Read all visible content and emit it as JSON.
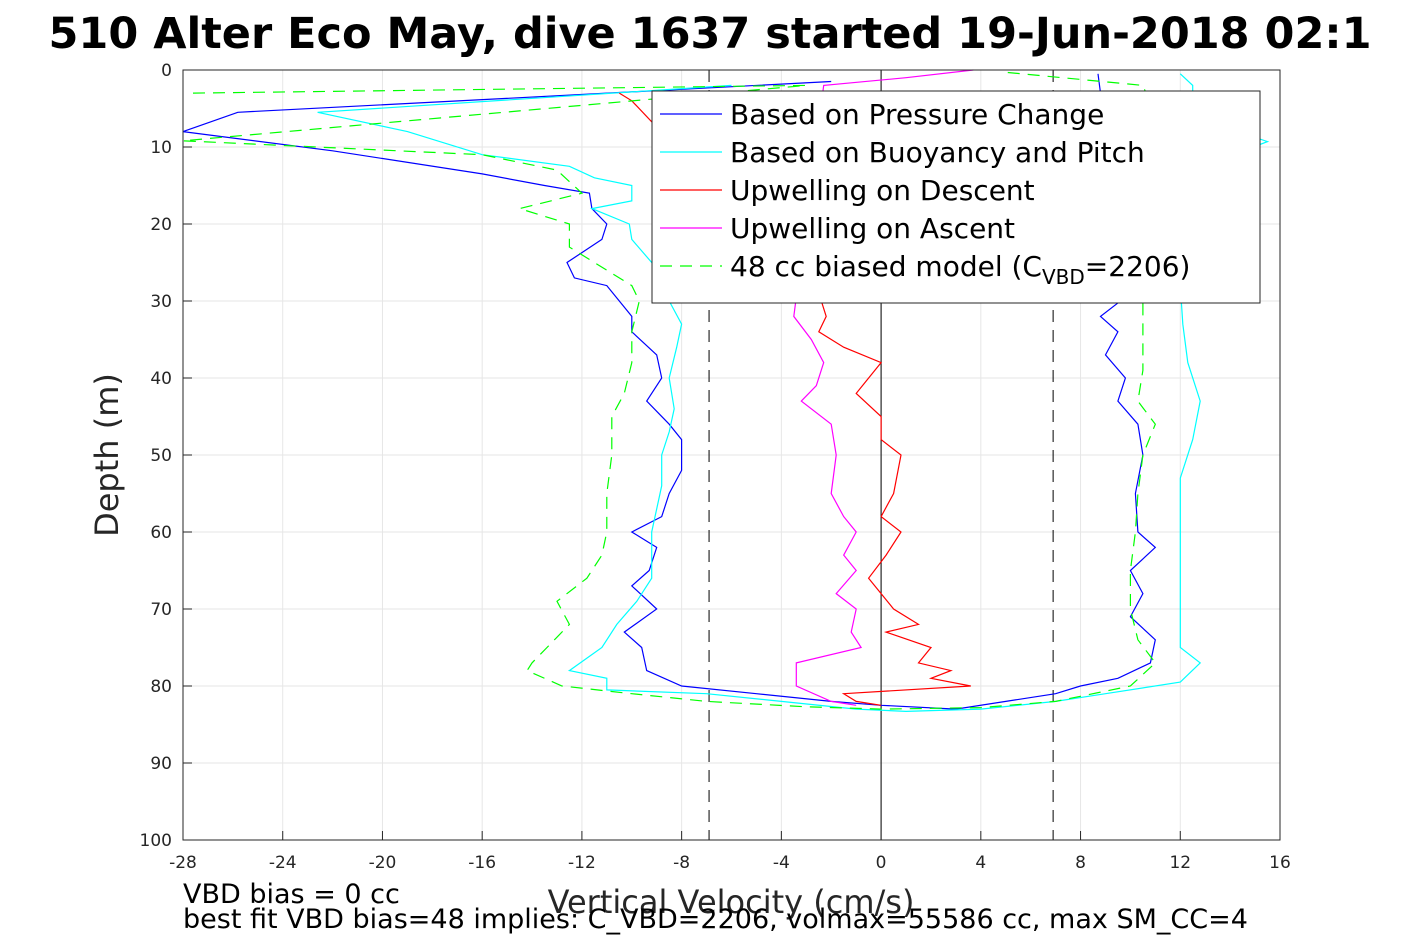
{
  "chart_data": {
    "type": "line",
    "title": "510 Alter Eco May, dive 1637 started 19-Jun-2018 02:1",
    "xlabel": "Vertical Velocity (cm/s)",
    "ylabel": "Depth (m)",
    "xlim": [
      -28,
      16
    ],
    "ylim": [
      0,
      100
    ],
    "y_reversed": true,
    "grid": true,
    "legend_position": "top-right",
    "xticks": [
      -28,
      -24,
      -20,
      -16,
      -12,
      -8,
      -4,
      0,
      4,
      8,
      12,
      16
    ],
    "yticks": [
      0,
      10,
      20,
      30,
      40,
      50,
      60,
      70,
      80,
      90,
      100
    ],
    "reference_lines": {
      "zero": 0,
      "dashed": [
        -6.9,
        6.9
      ]
    },
    "series": [
      {
        "name": "Based on Pressure Change",
        "color": "#0000ff",
        "style": "solid",
        "points": [
          [
            -2,
            1.5
          ],
          [
            -8,
            2.5
          ],
          [
            -25.8,
            5.5
          ],
          [
            -28,
            8
          ],
          [
            -22,
            10.5
          ],
          [
            -16,
            13.5
          ],
          [
            -13.5,
            15
          ],
          [
            -11.7,
            16
          ],
          [
            -11.6,
            18
          ],
          [
            -11,
            20
          ],
          [
            -11.2,
            22
          ],
          [
            -12.6,
            25
          ],
          [
            -12.3,
            27
          ],
          [
            -11,
            28
          ],
          [
            -10.5,
            30
          ],
          [
            -10,
            32
          ],
          [
            -10,
            34
          ],
          [
            -9,
            37
          ],
          [
            -8.8,
            40
          ],
          [
            -9.4,
            43
          ],
          [
            -8.5,
            46
          ],
          [
            -8,
            48
          ],
          [
            -8,
            52
          ],
          [
            -8.5,
            55
          ],
          [
            -8.8,
            58
          ],
          [
            -10,
            60
          ],
          [
            -9,
            62
          ],
          [
            -9.3,
            65
          ],
          [
            -10,
            67
          ],
          [
            -9,
            70
          ],
          [
            -10.3,
            73
          ],
          [
            -9.6,
            75
          ],
          [
            -9.4,
            78
          ],
          [
            -8,
            80
          ],
          [
            -5,
            81
          ],
          [
            -2,
            82
          ],
          [
            0,
            82.5
          ],
          [
            3,
            83
          ],
          [
            5,
            82
          ],
          [
            7,
            81
          ],
          [
            8,
            80
          ],
          [
            9.5,
            79
          ],
          [
            10.8,
            77
          ],
          [
            11,
            74
          ],
          [
            10,
            71
          ],
          [
            10.5,
            68
          ],
          [
            10,
            65
          ],
          [
            11,
            62
          ],
          [
            10.3,
            60
          ],
          [
            10.2,
            55
          ],
          [
            10.5,
            50
          ],
          [
            10.3,
            46
          ],
          [
            9.5,
            43
          ],
          [
            9.8,
            40
          ],
          [
            9,
            37
          ],
          [
            9.5,
            34
          ],
          [
            8.8,
            32
          ],
          [
            10,
            29
          ],
          [
            9.5,
            27
          ],
          [
            9.3,
            24
          ],
          [
            9.3,
            20
          ],
          [
            9.5,
            16
          ],
          [
            9.5,
            12
          ],
          [
            8.8,
            9
          ],
          [
            8.8,
            6
          ],
          [
            8.8,
            3
          ],
          [
            8.7,
            0.5
          ]
        ]
      },
      {
        "name": "Based on Buoyancy and Pitch",
        "color": "#00ffff",
        "style": "solid",
        "points": [
          [
            -6,
            2
          ],
          [
            -22.6,
            5.5
          ],
          [
            -19,
            8
          ],
          [
            -16,
            11
          ],
          [
            -12.5,
            12.5
          ],
          [
            -11.5,
            14
          ],
          [
            -10,
            15
          ],
          [
            -10,
            17
          ],
          [
            -11.6,
            18
          ],
          [
            -10.1,
            20
          ],
          [
            -10,
            22
          ],
          [
            -9.2,
            25
          ],
          [
            -8.5,
            28
          ],
          [
            -8.5,
            30
          ],
          [
            -8,
            33
          ],
          [
            -8.2,
            36
          ],
          [
            -8.5,
            40
          ],
          [
            -8.3,
            44
          ],
          [
            -8.5,
            47
          ],
          [
            -8.8,
            50
          ],
          [
            -8.8,
            54
          ],
          [
            -9,
            57
          ],
          [
            -9.2,
            60
          ],
          [
            -9.2,
            63
          ],
          [
            -9.2,
            66
          ],
          [
            -9.8,
            69
          ],
          [
            -10.6,
            72
          ],
          [
            -11.2,
            75
          ],
          [
            -12.5,
            78
          ],
          [
            -11,
            79
          ],
          [
            -11,
            80.5
          ],
          [
            -7,
            81
          ],
          [
            -4,
            82
          ],
          [
            -1,
            83
          ],
          [
            1,
            83.3
          ],
          [
            4,
            83
          ],
          [
            7,
            82
          ],
          [
            9,
            81
          ],
          [
            12,
            79.5
          ],
          [
            12.8,
            77
          ],
          [
            12,
            75
          ],
          [
            12,
            70
          ],
          [
            12,
            65
          ],
          [
            12,
            61
          ],
          [
            12,
            57
          ],
          [
            12,
            53
          ],
          [
            12.5,
            48
          ],
          [
            12.8,
            43
          ],
          [
            12.3,
            38
          ],
          [
            12.1,
            33
          ],
          [
            12,
            28
          ],
          [
            12.2,
            22
          ],
          [
            12.2,
            17
          ],
          [
            12.5,
            13
          ],
          [
            15.5,
            9.3
          ],
          [
            12.5,
            6
          ],
          [
            12.5,
            2
          ],
          [
            12,
            0.5
          ]
        ]
      },
      {
        "name": "Upwelling on Descent",
        "color": "#ff0000",
        "style": "solid",
        "points": [
          [
            -10.5,
            3
          ],
          [
            -10,
            4
          ],
          [
            -2.4,
            30
          ],
          [
            -2.2,
            32
          ],
          [
            -2.5,
            34
          ],
          [
            -1.5,
            36
          ],
          [
            0,
            38
          ],
          [
            -1,
            42
          ],
          [
            0,
            45
          ],
          [
            0,
            48
          ],
          [
            0.8,
            50
          ],
          [
            0.5,
            55
          ],
          [
            0,
            58
          ],
          [
            0.8,
            60
          ],
          [
            0.2,
            63
          ],
          [
            -0.5,
            66
          ],
          [
            0,
            68
          ],
          [
            0.5,
            70
          ],
          [
            1.5,
            72
          ],
          [
            0.2,
            73
          ],
          [
            2,
            75
          ],
          [
            1.5,
            77
          ],
          [
            2.8,
            78
          ],
          [
            2,
            79
          ],
          [
            3.6,
            80
          ],
          [
            -1.5,
            81
          ],
          [
            -1,
            82
          ],
          [
            0,
            82.5
          ]
        ]
      },
      {
        "name": "Upwelling on Ascent",
        "color": "#ff00ff",
        "style": "solid",
        "points": [
          [
            3.7,
            0
          ],
          [
            1,
            1
          ],
          [
            -2.3,
            2
          ],
          [
            -3.5,
            32
          ],
          [
            -2.8,
            35
          ],
          [
            -2.3,
            38
          ],
          [
            -2.6,
            41
          ],
          [
            -3.2,
            43
          ],
          [
            -2,
            46
          ],
          [
            -1.8,
            50
          ],
          [
            -2,
            55
          ],
          [
            -1.5,
            58
          ],
          [
            -1,
            60
          ],
          [
            -1.5,
            63
          ],
          [
            -1,
            65
          ],
          [
            -1.8,
            68
          ],
          [
            -1,
            70
          ],
          [
            -1.2,
            73
          ],
          [
            -0.8,
            75
          ],
          [
            -3.4,
            77
          ],
          [
            -3.4,
            80
          ],
          [
            -2,
            82
          ],
          [
            -1,
            82.5
          ]
        ]
      },
      {
        "name": "48 cc biased model (C_VBD=2206)",
        "color": "#00ff00",
        "style": "dashed",
        "points": [
          [
            -27.6,
            3
          ],
          [
            -3,
            2
          ],
          [
            -28,
            9.2
          ],
          [
            -16,
            11
          ],
          [
            -13,
            13
          ],
          [
            -12,
            16
          ],
          [
            -14.5,
            18
          ],
          [
            -12.5,
            20
          ],
          [
            -12.5,
            23
          ],
          [
            -11,
            26
          ],
          [
            -10,
            28
          ],
          [
            -9.7,
            30
          ],
          [
            -10,
            34
          ],
          [
            -10,
            38
          ],
          [
            -10.3,
            42
          ],
          [
            -10.8,
            45
          ],
          [
            -10.8,
            50
          ],
          [
            -11,
            55
          ],
          [
            -11,
            60
          ],
          [
            -11.2,
            63
          ],
          [
            -11.8,
            66
          ],
          [
            -13,
            69
          ],
          [
            -12.5,
            72
          ],
          [
            -13.4,
            75
          ],
          [
            -14,
            77
          ],
          [
            -14.2,
            78
          ],
          [
            -12.8,
            80
          ],
          [
            -10,
            81
          ],
          [
            -7,
            82
          ],
          [
            -3,
            82.7
          ],
          [
            0,
            83
          ],
          [
            4,
            82.8
          ],
          [
            7,
            82
          ],
          [
            10,
            80
          ],
          [
            11,
            77
          ],
          [
            10.3,
            74
          ],
          [
            10,
            70
          ],
          [
            10,
            65
          ],
          [
            10.2,
            60
          ],
          [
            10.3,
            55
          ],
          [
            10.5,
            50
          ],
          [
            11,
            46
          ],
          [
            10.3,
            43
          ],
          [
            10.5,
            39
          ],
          [
            10.5,
            34
          ],
          [
            10.5,
            29
          ],
          [
            10.5,
            24
          ],
          [
            10.2,
            19
          ],
          [
            10.5,
            14
          ],
          [
            11,
            10
          ],
          [
            11,
            6
          ],
          [
            10.5,
            2
          ],
          [
            5,
            0.3
          ]
        ]
      }
    ]
  },
  "legend": {
    "entries": [
      {
        "text": "Based on Pressure Change",
        "color": "#0000ff",
        "style": "solid"
      },
      {
        "text": "Based on Buoyancy and Pitch",
        "color": "#00ffff",
        "style": "solid"
      },
      {
        "text": "Upwelling on Descent",
        "color": "#ff0000",
        "style": "solid"
      },
      {
        "text": "Upwelling on Ascent",
        "color": "#ff00ff",
        "style": "solid"
      },
      {
        "text": "48 cc biased model (C",
        "sub": "VBD",
        "suffix": "=2206)",
        "color": "#00ff00",
        "style": "dashed"
      }
    ]
  },
  "footer": {
    "line1": "VBD bias = 0 cc",
    "line2": "best fit VBD bias=48 implies: C_VBD=2206, volmax=55586 cc, max SM_CC=4"
  }
}
